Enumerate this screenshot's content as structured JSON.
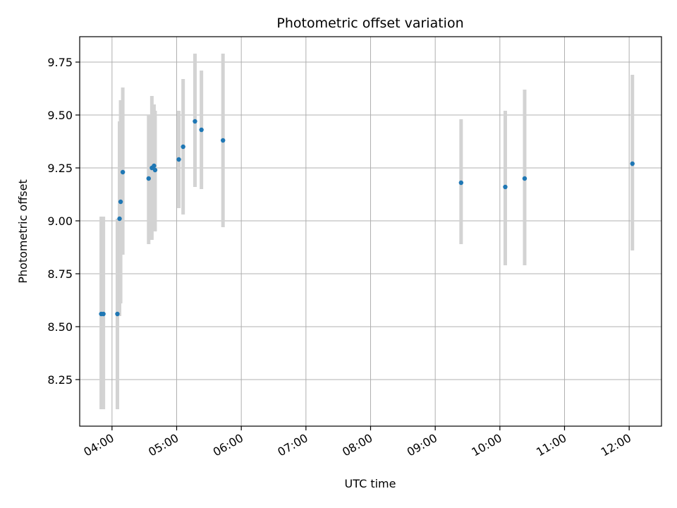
{
  "chart_data": {
    "type": "scatter",
    "title": "Photometric offset variation",
    "xlabel": "UTC time",
    "ylabel": "Photometric offset",
    "x_tick_labels": [
      "04:00",
      "05:00",
      "06:00",
      "07:00",
      "08:00",
      "09:00",
      "10:00",
      "11:00",
      "12:00"
    ],
    "y_tick_labels": [
      "8.25",
      "8.50",
      "8.75",
      "9.00",
      "9.25",
      "9.50",
      "9.75"
    ],
    "xlim": [
      "03:30",
      "12:30"
    ],
    "ylim": [
      8.03,
      9.87
    ],
    "grid": true,
    "colors": {
      "marker": "#1f77b4",
      "errorbar": "#d3d3d3",
      "grid": "#b0b0b0"
    },
    "points": [
      {
        "x": "03:50",
        "y": 8.56,
        "yerr_low": 8.11,
        "yerr_high": 9.02
      },
      {
        "x": "03:52",
        "y": 8.56,
        "yerr_low": 8.11,
        "yerr_high": 9.02
      },
      {
        "x": "04:05",
        "y": 8.56,
        "yerr_low": 8.11,
        "yerr_high": 9.01
      },
      {
        "x": "04:07",
        "y": 9.01,
        "yerr_low": 8.55,
        "yerr_high": 9.47
      },
      {
        "x": "04:08",
        "y": 9.09,
        "yerr_low": 8.61,
        "yerr_high": 9.57
      },
      {
        "x": "04:10",
        "y": 9.23,
        "yerr_low": 8.84,
        "yerr_high": 9.63
      },
      {
        "x": "04:34",
        "y": 9.2,
        "yerr_low": 8.89,
        "yerr_high": 9.5
      },
      {
        "x": "04:37",
        "y": 9.25,
        "yerr_low": 8.91,
        "yerr_high": 9.59
      },
      {
        "x": "04:39",
        "y": 9.26,
        "yerr_low": 8.96,
        "yerr_high": 9.55
      },
      {
        "x": "04:40",
        "y": 9.24,
        "yerr_low": 8.95,
        "yerr_high": 9.52
      },
      {
        "x": "05:02",
        "y": 9.29,
        "yerr_low": 9.06,
        "yerr_high": 9.52
      },
      {
        "x": "05:06",
        "y": 9.35,
        "yerr_low": 9.03,
        "yerr_high": 9.67
      },
      {
        "x": "05:17",
        "y": 9.47,
        "yerr_low": 9.16,
        "yerr_high": 9.79
      },
      {
        "x": "05:23",
        "y": 9.43,
        "yerr_low": 9.15,
        "yerr_high": 9.71
      },
      {
        "x": "05:43",
        "y": 9.38,
        "yerr_low": 8.97,
        "yerr_high": 9.79
      },
      {
        "x": "09:24",
        "y": 9.18,
        "yerr_low": 8.89,
        "yerr_high": 9.48
      },
      {
        "x": "10:05",
        "y": 9.16,
        "yerr_low": 8.79,
        "yerr_high": 9.52
      },
      {
        "x": "10:23",
        "y": 9.2,
        "yerr_low": 8.79,
        "yerr_high": 9.62
      },
      {
        "x": "12:03",
        "y": 9.27,
        "yerr_low": 8.86,
        "yerr_high": 9.69
      }
    ]
  }
}
